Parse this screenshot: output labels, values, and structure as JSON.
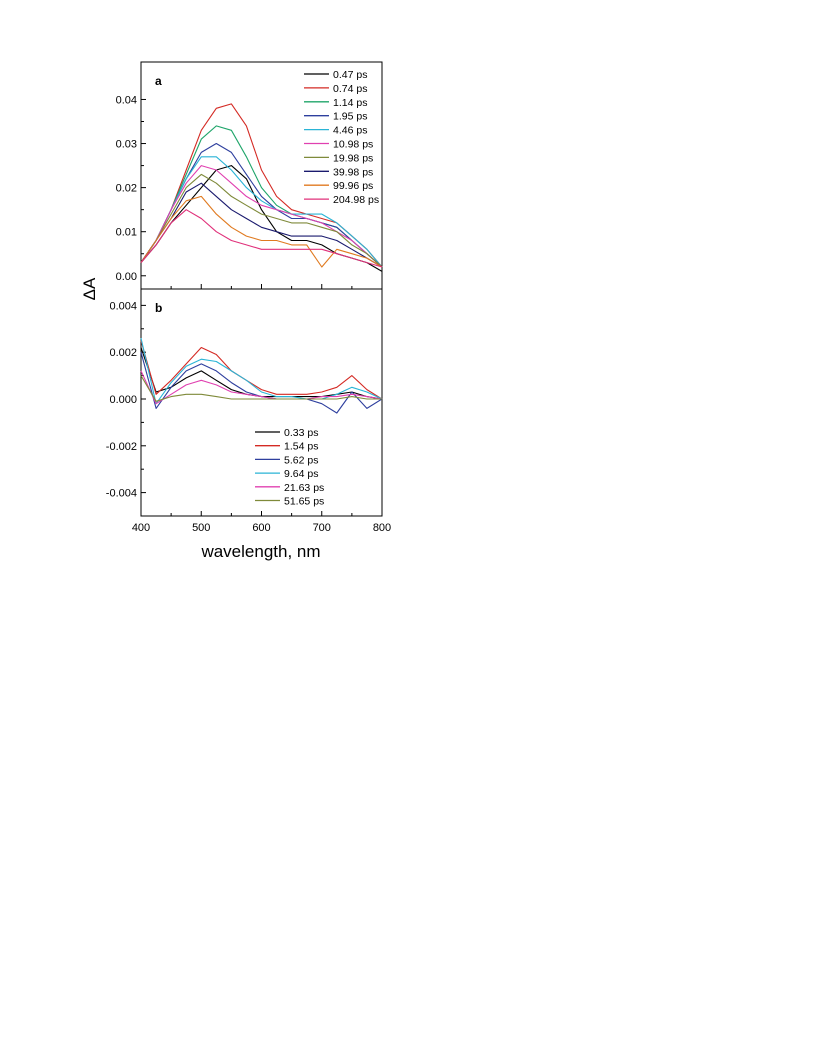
{
  "chart_data": [
    {
      "panel": "a",
      "type": "line",
      "xlabel": "wavelength, nm",
      "ylabel": "ΔA",
      "xlim": [
        400,
        800
      ],
      "ylim": [
        -0.003,
        0.0485
      ],
      "xticks": [
        400,
        500,
        600,
        700,
        800
      ],
      "yticks": [
        0.0,
        0.01,
        0.02,
        0.03,
        0.04
      ],
      "ytick_labels": [
        "0.00",
        "0.01",
        "0.02",
        "0.03",
        "0.04"
      ],
      "legend_position": "top-right",
      "x": [
        400,
        425,
        450,
        475,
        500,
        525,
        550,
        575,
        600,
        625,
        650,
        675,
        700,
        725,
        750,
        775,
        800
      ],
      "series": [
        {
          "name": "0.47 ps",
          "color": "#000000",
          "values": [
            0.003,
            0.007,
            0.012,
            0.016,
            0.02,
            0.024,
            0.025,
            0.022,
            0.015,
            0.01,
            0.008,
            0.008,
            0.007,
            0.005,
            0.004,
            0.003,
            0.001
          ]
        },
        {
          "name": "0.74 ps",
          "color": "#d42a24",
          "values": [
            0.003,
            0.008,
            0.015,
            0.024,
            0.033,
            0.038,
            0.039,
            0.034,
            0.024,
            0.018,
            0.015,
            0.014,
            0.013,
            0.012,
            0.009,
            0.006,
            0.002
          ]
        },
        {
          "name": "1.14 ps",
          "color": "#1fa56a",
          "values": [
            0.003,
            0.008,
            0.015,
            0.023,
            0.031,
            0.034,
            0.033,
            0.027,
            0.02,
            0.016,
            0.014,
            0.013,
            0.012,
            0.011,
            0.008,
            0.005,
            0.002
          ]
        },
        {
          "name": "1.95 ps",
          "color": "#2e3f9e",
          "values": [
            0.003,
            0.008,
            0.015,
            0.022,
            0.028,
            0.03,
            0.028,
            0.023,
            0.018,
            0.015,
            0.013,
            0.013,
            0.012,
            0.011,
            0.008,
            0.005,
            0.002
          ]
        },
        {
          "name": "4.46 ps",
          "color": "#2ab4d6",
          "values": [
            0.003,
            0.008,
            0.015,
            0.022,
            0.027,
            0.027,
            0.024,
            0.02,
            0.017,
            0.015,
            0.014,
            0.014,
            0.014,
            0.012,
            0.009,
            0.006,
            0.002
          ]
        },
        {
          "name": "10.98 ps",
          "color": "#e040b0",
          "values": [
            0.003,
            0.008,
            0.015,
            0.021,
            0.025,
            0.024,
            0.021,
            0.018,
            0.016,
            0.015,
            0.014,
            0.013,
            0.012,
            0.01,
            0.008,
            0.005,
            0.002
          ]
        },
        {
          "name": "19.98 ps",
          "color": "#7f8a3a",
          "values": [
            0.003,
            0.008,
            0.014,
            0.02,
            0.023,
            0.021,
            0.018,
            0.016,
            0.014,
            0.013,
            0.012,
            0.012,
            0.011,
            0.01,
            0.007,
            0.005,
            0.002
          ]
        },
        {
          "name": "39.98 ps",
          "color": "#1a1a6e",
          "values": [
            0.003,
            0.008,
            0.013,
            0.019,
            0.021,
            0.018,
            0.015,
            0.013,
            0.011,
            0.01,
            0.009,
            0.009,
            0.009,
            0.008,
            0.006,
            0.004,
            0.002
          ]
        },
        {
          "name": "99.96 ps",
          "color": "#e07a20",
          "values": [
            0.003,
            0.008,
            0.013,
            0.017,
            0.018,
            0.014,
            0.011,
            0.009,
            0.008,
            0.008,
            0.007,
            0.007,
            0.002,
            0.006,
            0.005,
            0.004,
            0.002
          ]
        },
        {
          "name": "204.98 ps",
          "color": "#e0307a",
          "values": [
            0.003,
            0.007,
            0.012,
            0.015,
            0.013,
            0.01,
            0.008,
            0.007,
            0.006,
            0.006,
            0.006,
            0.006,
            0.006,
            0.005,
            0.004,
            0.003,
            0.002
          ]
        }
      ]
    },
    {
      "panel": "b",
      "type": "line",
      "xlabel": "wavelength, nm",
      "ylabel": "ΔA",
      "xlim": [
        400,
        800
      ],
      "ylim": [
        -0.005,
        0.0047
      ],
      "xticks": [
        400,
        500,
        600,
        700,
        800
      ],
      "xtick_labels": [
        "400",
        "500",
        "600",
        "700",
        "800"
      ],
      "yticks": [
        -0.004,
        -0.002,
        0.0,
        0.002,
        0.004
      ],
      "ytick_labels": [
        "-0.004",
        "-0.002",
        "0.000",
        "0.002",
        "0.004"
      ],
      "legend_position": "bottom-right",
      "x": [
        400,
        425,
        450,
        475,
        500,
        525,
        550,
        575,
        600,
        625,
        650,
        675,
        700,
        725,
        750,
        775,
        800
      ],
      "series": [
        {
          "name": "0.33 ps",
          "color": "#000000",
          "values": [
            0.0022,
            0.0003,
            0.0005,
            0.0009,
            0.0012,
            0.0008,
            0.0004,
            0.0002,
            0.0001,
            0.0001,
            0.0001,
            0.0001,
            0.0001,
            0.0002,
            0.0003,
            0.0001,
            0.0
          ]
        },
        {
          "name": "1.54 ps",
          "color": "#d42a24",
          "values": [
            0.0025,
            0.0002,
            0.0008,
            0.0015,
            0.0022,
            0.0019,
            0.0012,
            0.0008,
            0.0004,
            0.0002,
            0.0002,
            0.0002,
            0.0003,
            0.0005,
            0.001,
            0.0004,
            0.0
          ]
        },
        {
          "name": "5.62 ps",
          "color": "#2e3f9e",
          "values": [
            0.002,
            -0.0004,
            0.0005,
            0.0012,
            0.0015,
            0.0012,
            0.0007,
            0.0003,
            0.0001,
            0.0,
            0.0,
            0.0,
            -0.0002,
            -0.0006,
            0.0003,
            -0.0004,
            0.0
          ]
        },
        {
          "name": "9.64 ps",
          "color": "#2ab4d6",
          "values": [
            0.0026,
            -0.0002,
            0.0007,
            0.0014,
            0.0017,
            0.0016,
            0.0012,
            0.0008,
            0.0003,
            0.0001,
            0.0001,
            0.0,
            0.0,
            0.0002,
            0.0005,
            0.0003,
            0.0
          ]
        },
        {
          "name": "21.63 ps",
          "color": "#e040b0",
          "values": [
            0.0012,
            -0.0002,
            0.0002,
            0.0006,
            0.0008,
            0.0006,
            0.0003,
            0.0002,
            0.0001,
            0.0,
            0.0,
            0.0,
            0.0001,
            0.0001,
            0.0002,
            0.0001,
            0.0
          ]
        },
        {
          "name": "51.65 ps",
          "color": "#7f8a3a",
          "values": [
            0.001,
            -0.0001,
            0.0001,
            0.0002,
            0.0002,
            0.0001,
            0.0,
            0.0,
            0.0,
            0.0,
            0.0,
            0.0,
            0.0,
            0.0,
            0.0001,
            0.0,
            0.0
          ]
        }
      ]
    }
  ]
}
